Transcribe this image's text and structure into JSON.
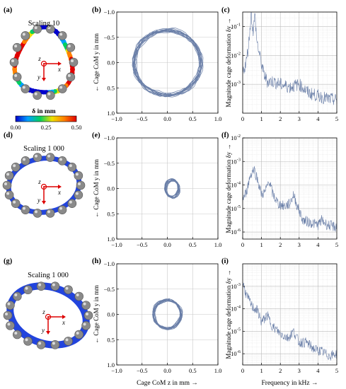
{
  "panel_labels": [
    "(a)",
    "(b)",
    "(c)",
    "(d)",
    "(e)",
    "(f)",
    "(g)",
    "(h)",
    "(i)"
  ],
  "row_titles": [
    "Scaling 10",
    "Scaling 1 000",
    "Scaling 1 000"
  ],
  "illustration": {
    "axis_labels": [
      "z",
      "x",
      "y"
    ],
    "colorbar_title": "δ in mm",
    "colorbar_ticks": [
      "0.00",
      "0.25",
      "0.50"
    ],
    "colorbar_colors": [
      "#0000cc",
      "#00a0ff",
      "#00d060",
      "#f0e000",
      "#ff8000",
      "#e00000"
    ],
    "ring_color_rows_2_3": "#2244dd",
    "ball_color": "#8a8a8a"
  },
  "labels": {
    "orbit_ylabel": "← Cage CoM y in mm",
    "orbit_xlabel": "Cage CoM z in mm →",
    "spectrum_ylabel": "Magnitude cage deformation δy →",
    "spectrum_xlabel": "Frequency in kHz →"
  },
  "line_color": "#6a7fa8",
  "chart_data": [
    {
      "panel": "(b)",
      "type": "line",
      "title": "",
      "xlabel": "",
      "ylabel": "← Cage CoM y in mm",
      "xlim": [
        -1.0,
        1.0
      ],
      "ylim": [
        -1.0,
        1.0
      ],
      "y_inverted": true,
      "grid": true,
      "xticks": [
        "−1.0",
        "−0.5",
        "0.0",
        "0.5",
        "1.0"
      ],
      "yticks": [
        "−1.0",
        "−0.5",
        "0.0",
        "0.5",
        "1.0"
      ],
      "orbit": {
        "center_x": 0.0,
        "center_y": 0.0,
        "radius_x": 0.66,
        "radius_y": 0.64
      }
    },
    {
      "panel": "(e)",
      "type": "line",
      "title": "",
      "xlabel": "",
      "ylabel": "← Cage CoM y in mm",
      "xlim": [
        -1.0,
        1.0
      ],
      "ylim": [
        -1.0,
        1.0
      ],
      "y_inverted": true,
      "grid": true,
      "xticks": [
        "−1.0",
        "−0.5",
        "0.0",
        "0.5",
        "1.0"
      ],
      "yticks": [
        "−1.0",
        "−0.5",
        "0.0",
        "0.5",
        "1.0"
      ],
      "orbit": {
        "center_x": 0.1,
        "center_y": 0.0,
        "radius_x": 0.13,
        "radius_y": 0.17
      }
    },
    {
      "panel": "(h)",
      "type": "line",
      "title": "",
      "xlabel": "Cage CoM z in mm →",
      "ylabel": "← Cage CoM y in mm",
      "xlim": [
        -1.0,
        1.0
      ],
      "ylim": [
        -1.0,
        1.0
      ],
      "y_inverted": true,
      "grid": true,
      "xticks": [
        "−1.0",
        "−0.5",
        "0.0",
        "0.5",
        "1.0"
      ],
      "yticks": [
        "−1.0",
        "−0.5",
        "0.0",
        "0.5",
        "1.0"
      ],
      "orbit": {
        "center_x": 0.0,
        "center_y": 0.0,
        "radius_x": 0.27,
        "radius_y": 0.28
      }
    },
    {
      "panel": "(c)",
      "type": "line",
      "title": "",
      "xlabel": "",
      "ylabel": "Magnitude cage deformation δy →",
      "xlim": [
        0,
        5
      ],
      "ylim_log10": [
        -4,
        -0.5
      ],
      "yscale": "log",
      "grid": true,
      "xticks": [
        "0",
        "1",
        "2",
        "3",
        "4",
        "5"
      ],
      "yticks": [
        {
          "exp": "-1",
          "value": -1
        },
        {
          "exp": "-2",
          "value": -2
        },
        {
          "exp": "-3",
          "value": -3
        }
      ],
      "x": [
        0.0,
        0.2,
        0.35,
        0.45,
        0.55,
        0.65,
        0.75,
        0.9,
        1.1,
        1.3,
        1.6,
        2.0,
        2.5,
        3.0,
        3.5,
        4.0,
        4.5,
        5.0
      ],
      "y_log10": [
        -2.6,
        -2.2,
        -1.4,
        -0.5,
        -1.2,
        -0.6,
        -1.5,
        -2.0,
        -2.6,
        -2.9,
        -2.9,
        -3.0,
        -3.1,
        -3.0,
        -3.3,
        -3.4,
        -3.5,
        -3.55
      ]
    },
    {
      "panel": "(f)",
      "type": "line",
      "title": "",
      "xlabel": "",
      "ylabel": "Magnitude cage deformation δy →",
      "xlim": [
        0,
        5
      ],
      "ylim_log10": [
        -6.3,
        -2
      ],
      "yscale": "log",
      "grid": true,
      "xticks": [
        "0",
        "1",
        "2",
        "3",
        "4",
        "5"
      ],
      "yticks": [
        {
          "exp": "-2",
          "value": -2
        },
        {
          "exp": "-3",
          "value": -3
        },
        {
          "exp": "-4",
          "value": -4
        },
        {
          "exp": "-5",
          "value": -5
        },
        {
          "exp": "-6",
          "value": -6
        }
      ],
      "x": [
        0.0,
        0.2,
        0.4,
        0.6,
        0.8,
        1.0,
        1.2,
        1.4,
        1.6,
        1.9,
        2.2,
        2.5,
        2.7,
        2.9,
        3.2,
        3.6,
        4.0,
        4.2,
        4.5,
        5.0
      ],
      "y_log10": [
        -4.6,
        -4.3,
        -3.6,
        -3.3,
        -3.8,
        -4.4,
        -4.3,
        -3.8,
        -4.4,
        -4.8,
        -4.9,
        -4.8,
        -4.4,
        -4.9,
        -5.5,
        -5.6,
        -5.7,
        -5.5,
        -5.7,
        -5.8
      ]
    },
    {
      "panel": "(i)",
      "type": "line",
      "title": "",
      "xlabel": "Frequency in kHz →",
      "ylabel": "Magnitude cage deformation δy →",
      "xlim": [
        0,
        5
      ],
      "ylim_log10": [
        -6.5,
        -2
      ],
      "yscale": "log",
      "grid": true,
      "xticks": [
        "0",
        "1",
        "2",
        "3",
        "4",
        "5"
      ],
      "yticks": [
        {
          "exp": "-3",
          "value": -3
        },
        {
          "exp": "-4",
          "value": -4
        },
        {
          "exp": "-5",
          "value": -5
        },
        {
          "exp": "-6",
          "value": -6
        }
      ],
      "x": [
        0.0,
        0.2,
        0.5,
        0.8,
        1.0,
        1.3,
        1.6,
        2.0,
        2.4,
        2.7,
        3.0,
        3.4,
        3.8,
        4.2,
        4.6,
        5.0
      ],
      "y_log10": [
        -2.8,
        -3.4,
        -3.9,
        -4.1,
        -4.6,
        -4.3,
        -4.8,
        -5.1,
        -5.3,
        -5.0,
        -5.5,
        -5.5,
        -5.8,
        -5.9,
        -6.1,
        -6.0
      ]
    }
  ]
}
